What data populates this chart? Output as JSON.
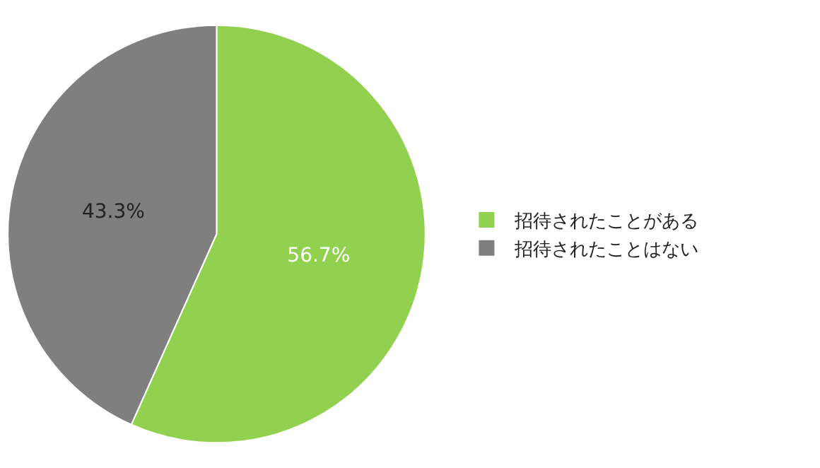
{
  "chart_data": {
    "type": "pie",
    "categories": [
      "招待されたことがある",
      "招待されたことはない"
    ],
    "values": [
      56.7,
      43.3
    ],
    "colors": [
      "#92d050",
      "#7f7f7f"
    ],
    "value_labels": [
      "56.7%",
      "43.3%"
    ],
    "legend": "right"
  }
}
